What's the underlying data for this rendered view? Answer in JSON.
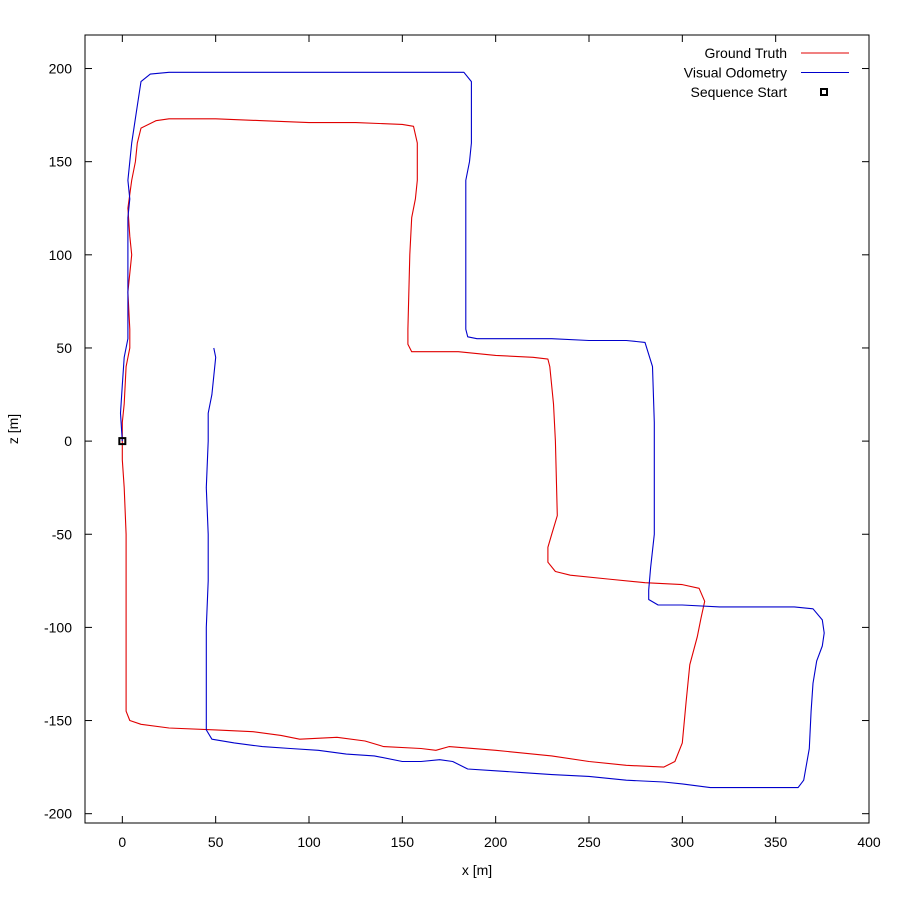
{
  "chart_data": {
    "type": "line",
    "title": "",
    "xlabel": "x [m]",
    "ylabel": "z [m]",
    "xlim": [
      -20,
      400
    ],
    "ylim": [
      -205,
      218
    ],
    "x_ticks": [
      0,
      50,
      100,
      150,
      200,
      250,
      300,
      350,
      400
    ],
    "y_ticks": [
      -200,
      -150,
      -100,
      -50,
      0,
      50,
      100,
      150,
      200
    ],
    "grid": false,
    "legend_position": "top-right",
    "series": [
      {
        "name": "Ground Truth",
        "color": "#e00000",
        "points": [
          [
            0,
            0
          ],
          [
            0,
            -10
          ],
          [
            1,
            -25
          ],
          [
            2,
            -50
          ],
          [
            2,
            -100
          ],
          [
            2,
            -145
          ],
          [
            4,
            -150
          ],
          [
            10,
            -152
          ],
          [
            25,
            -154
          ],
          [
            50,
            -155
          ],
          [
            70,
            -156
          ],
          [
            85,
            -158
          ],
          [
            95,
            -160
          ],
          [
            115,
            -159
          ],
          [
            130,
            -161
          ],
          [
            140,
            -164
          ],
          [
            160,
            -165
          ],
          [
            168,
            -166
          ],
          [
            175,
            -164
          ],
          [
            200,
            -166
          ],
          [
            230,
            -169
          ],
          [
            250,
            -172
          ],
          [
            270,
            -174
          ],
          [
            290,
            -175
          ],
          [
            296,
            -172
          ],
          [
            300,
            -162
          ],
          [
            302,
            -140
          ],
          [
            304,
            -120
          ],
          [
            308,
            -105
          ],
          [
            310,
            -95
          ],
          [
            312,
            -86
          ],
          [
            309,
            -79
          ],
          [
            300,
            -77
          ],
          [
            280,
            -76
          ],
          [
            260,
            -74
          ],
          [
            240,
            -72
          ],
          [
            232,
            -70
          ],
          [
            228,
            -65
          ],
          [
            228,
            -57
          ],
          [
            230,
            -50
          ],
          [
            233,
            -40
          ],
          [
            232,
            0
          ],
          [
            231,
            20
          ],
          [
            229,
            40
          ],
          [
            228,
            44
          ],
          [
            220,
            45
          ],
          [
            200,
            46
          ],
          [
            180,
            48
          ],
          [
            160,
            48
          ],
          [
            155,
            48
          ],
          [
            153,
            52
          ],
          [
            153,
            60
          ],
          [
            154,
            100
          ],
          [
            155,
            120
          ],
          [
            157,
            130
          ],
          [
            158,
            140
          ],
          [
            158,
            160
          ],
          [
            156,
            169
          ],
          [
            150,
            170
          ],
          [
            125,
            171
          ],
          [
            100,
            171
          ],
          [
            75,
            172
          ],
          [
            50,
            173
          ],
          [
            25,
            173
          ],
          [
            18,
            172
          ],
          [
            10,
            168
          ],
          [
            8,
            160
          ],
          [
            7,
            150
          ],
          [
            5,
            140
          ],
          [
            3,
            125
          ],
          [
            4,
            110
          ],
          [
            5,
            100
          ],
          [
            3,
            80
          ],
          [
            4,
            60
          ],
          [
            4,
            50
          ],
          [
            2,
            40
          ],
          [
            1,
            20
          ],
          [
            0,
            10
          ],
          [
            0,
            0
          ]
        ]
      },
      {
        "name": "Visual Odometry",
        "color": "#0000cc",
        "points": [
          [
            49,
            50
          ],
          [
            50,
            45
          ],
          [
            49,
            35
          ],
          [
            48,
            25
          ],
          [
            46,
            15
          ],
          [
            46,
            0
          ],
          [
            45,
            -25
          ],
          [
            46,
            -50
          ],
          [
            46,
            -75
          ],
          [
            45,
            -100
          ],
          [
            45,
            -125
          ],
          [
            45,
            -155
          ],
          [
            48,
            -160
          ],
          [
            60,
            -162
          ],
          [
            75,
            -164
          ],
          [
            90,
            -165
          ],
          [
            105,
            -166
          ],
          [
            120,
            -168
          ],
          [
            135,
            -169
          ],
          [
            150,
            -172
          ],
          [
            160,
            -172
          ],
          [
            170,
            -171
          ],
          [
            177,
            -172
          ],
          [
            185,
            -176
          ],
          [
            200,
            -177
          ],
          [
            215,
            -178
          ],
          [
            230,
            -179
          ],
          [
            250,
            -180
          ],
          [
            270,
            -182
          ],
          [
            290,
            -183
          ],
          [
            300,
            -184
          ],
          [
            315,
            -186
          ],
          [
            330,
            -186
          ],
          [
            350,
            -186
          ],
          [
            362,
            -186
          ],
          [
            365,
            -182
          ],
          [
            368,
            -165
          ],
          [
            369,
            -145
          ],
          [
            370,
            -130
          ],
          [
            372,
            -118
          ],
          [
            375,
            -110
          ],
          [
            376,
            -103
          ],
          [
            375,
            -96
          ],
          [
            370,
            -90
          ],
          [
            360,
            -89
          ],
          [
            340,
            -89
          ],
          [
            320,
            -89
          ],
          [
            300,
            -88
          ],
          [
            287,
            -88
          ],
          [
            282,
            -85
          ],
          [
            282,
            -80
          ],
          [
            283,
            -68
          ],
          [
            285,
            -50
          ],
          [
            285,
            -20
          ],
          [
            285,
            10
          ],
          [
            284,
            40
          ],
          [
            280,
            53
          ],
          [
            270,
            54
          ],
          [
            250,
            54
          ],
          [
            230,
            55
          ],
          [
            210,
            55
          ],
          [
            190,
            55
          ],
          [
            185,
            56
          ],
          [
            184,
            60
          ],
          [
            184,
            80
          ],
          [
            184,
            110
          ],
          [
            184,
            140
          ],
          [
            186,
            150
          ],
          [
            187,
            160
          ],
          [
            187,
            193
          ],
          [
            183,
            198
          ],
          [
            170,
            198
          ],
          [
            150,
            198
          ],
          [
            125,
            198
          ],
          [
            100,
            198
          ],
          [
            75,
            198
          ],
          [
            50,
            198
          ],
          [
            25,
            198
          ],
          [
            15,
            197
          ],
          [
            10,
            193
          ],
          [
            8,
            180
          ],
          [
            5,
            160
          ],
          [
            4,
            150
          ],
          [
            3,
            140
          ],
          [
            4,
            130
          ],
          [
            3,
            120
          ],
          [
            3,
            100
          ],
          [
            3,
            75
          ],
          [
            3,
            55
          ],
          [
            1,
            45
          ],
          [
            0,
            30
          ],
          [
            -1,
            15
          ],
          [
            0,
            0
          ]
        ]
      },
      {
        "name": "Sequence Start",
        "marker": "square",
        "color": "#000000",
        "points": [
          [
            0,
            0
          ]
        ]
      }
    ]
  }
}
